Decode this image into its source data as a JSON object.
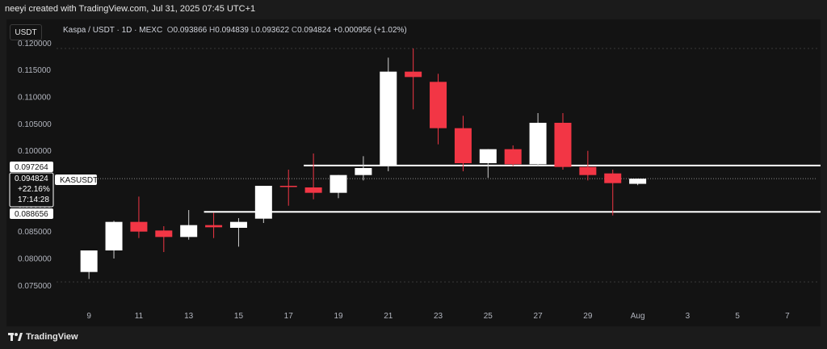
{
  "header": {
    "created_by": "neeyi created with TradingView.com, Jul 31, 2025 07:45 UTC+1"
  },
  "symbol_button": "USDT",
  "legend": {
    "pair": "Kaspa / USDT · 1D · MEXC",
    "o_label": "O",
    "o_value": "0.093866",
    "h_label": "H",
    "h_value": "0.094839",
    "l_label": "L",
    "l_value": "0.093622",
    "c_label": "C",
    "c_value": "0.094824",
    "change": "+0.000956 (+1.02%)"
  },
  "price_tags": {
    "upper_level": "0.097264",
    "current_price": "0.094824",
    "current_change": "+22.16%",
    "countdown": "17:14:28",
    "symbol": "KASUSDT",
    "lower_level": "0.088656"
  },
  "footer": {
    "brand": "TradingView"
  },
  "colors": {
    "up": "#ffffff",
    "down": "#f23645",
    "line": "#ffffff",
    "bg": "#131313"
  },
  "chart_data": {
    "type": "candlestick",
    "title": "",
    "ylim": [
      0.0725,
      0.1205
    ],
    "y_ticks": [
      "0.120000",
      "0.115000",
      "0.110000",
      "0.105000",
      "0.100000",
      "0.095000",
      "0.090000",
      "0.085000",
      "0.080000",
      "0.075000"
    ],
    "x_ticks": [
      {
        "day": 9,
        "label": "9"
      },
      {
        "day": 11,
        "label": "11"
      },
      {
        "day": 13,
        "label": "13"
      },
      {
        "day": 15,
        "label": "15"
      },
      {
        "day": 17,
        "label": "17"
      },
      {
        "day": 19,
        "label": "19"
      },
      {
        "day": 21,
        "label": "21"
      },
      {
        "day": 23,
        "label": "23"
      },
      {
        "day": 25,
        "label": "25"
      },
      {
        "day": 27,
        "label": "27"
      },
      {
        "day": 29,
        "label": "29"
      },
      {
        "day": 31,
        "label": "Aug"
      },
      {
        "day": 33,
        "label": "3"
      },
      {
        "day": 35,
        "label": "5"
      },
      {
        "day": 37,
        "label": "7"
      }
    ],
    "x_range": [
      7.7,
      38.2
    ],
    "candles": [
      {
        "day": 9,
        "o": 0.0775,
        "h": 0.0815,
        "l": 0.0762,
        "c": 0.0815
      },
      {
        "day": 10,
        "o": 0.0815,
        "h": 0.087,
        "l": 0.08,
        "c": 0.0868
      },
      {
        "day": 11,
        "o": 0.0868,
        "h": 0.0915,
        "l": 0.0838,
        "c": 0.085
      },
      {
        "day": 12,
        "o": 0.0852,
        "h": 0.086,
        "l": 0.0812,
        "c": 0.084
      },
      {
        "day": 13,
        "o": 0.084,
        "h": 0.089,
        "l": 0.0835,
        "c": 0.0862
      },
      {
        "day": 14,
        "o": 0.0862,
        "h": 0.0885,
        "l": 0.0838,
        "c": 0.0858
      },
      {
        "day": 15,
        "o": 0.0857,
        "h": 0.0875,
        "l": 0.0822,
        "c": 0.0868
      },
      {
        "day": 16,
        "o": 0.0874,
        "h": 0.0935,
        "l": 0.0866,
        "c": 0.0935
      },
      {
        "day": 17,
        "o": 0.0935,
        "h": 0.0965,
        "l": 0.0898,
        "c": 0.0933
      },
      {
        "day": 18,
        "o": 0.0932,
        "h": 0.0995,
        "l": 0.091,
        "c": 0.0922
      },
      {
        "day": 19,
        "o": 0.0922,
        "h": 0.0955,
        "l": 0.0912,
        "c": 0.0955
      },
      {
        "day": 20,
        "o": 0.0955,
        "h": 0.099,
        "l": 0.0945,
        "c": 0.0968
      },
      {
        "day": 21,
        "o": 0.0972,
        "h": 0.1173,
        "l": 0.0962,
        "c": 0.1147
      },
      {
        "day": 22,
        "o": 0.1147,
        "h": 0.119,
        "l": 0.1077,
        "c": 0.1137
      },
      {
        "day": 23,
        "o": 0.1128,
        "h": 0.1143,
        "l": 0.1012,
        "c": 0.1042
      },
      {
        "day": 24,
        "o": 0.1042,
        "h": 0.1065,
        "l": 0.0962,
        "c": 0.0977
      },
      {
        "day": 25,
        "o": 0.0977,
        "h": 0.1003,
        "l": 0.095,
        "c": 0.1003
      },
      {
        "day": 26,
        "o": 0.1003,
        "h": 0.101,
        "l": 0.0972,
        "c": 0.0975
      },
      {
        "day": 27,
        "o": 0.0975,
        "h": 0.107,
        "l": 0.0972,
        "c": 0.1052
      },
      {
        "day": 28,
        "o": 0.1052,
        "h": 0.107,
        "l": 0.0965,
        "c": 0.097
      },
      {
        "day": 29,
        "o": 0.097,
        "h": 0.1,
        "l": 0.0945,
        "c": 0.0955
      },
      {
        "day": 30,
        "o": 0.0958,
        "h": 0.0965,
        "l": 0.088,
        "c": 0.094
      },
      {
        "day": 31,
        "o": 0.093866,
        "h": 0.094839,
        "l": 0.093622,
        "c": 0.094824
      }
    ],
    "horizontal_lines": [
      {
        "price": 0.097264,
        "from_day": 18
      },
      {
        "price": 0.088656,
        "from_day": 14
      }
    ],
    "current_price": 0.094824
  }
}
